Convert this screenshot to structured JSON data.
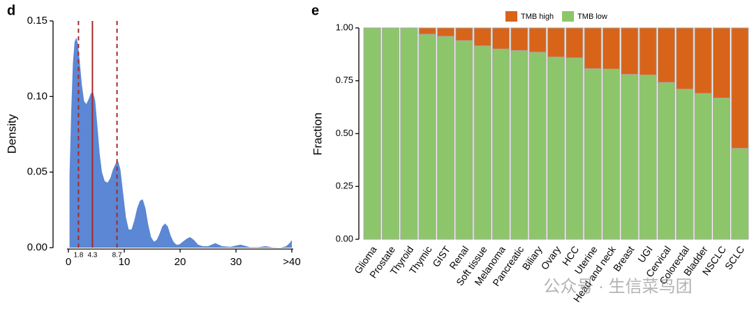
{
  "chart_data": [
    {
      "type": "area",
      "panel": "d",
      "ylabel": "Density",
      "color": "#5b87d4",
      "x": [
        0.2,
        0.5,
        0.8,
        1.1,
        1.4,
        1.7,
        2.0,
        2.4,
        2.8,
        3.2,
        3.6,
        4.0,
        4.4,
        4.8,
        5.2,
        5.6,
        6.0,
        6.5,
        7.0,
        7.5,
        8.0,
        8.5,
        8.9,
        9.3,
        9.8,
        10.3,
        10.8,
        11.3,
        11.8,
        12.3,
        12.8,
        13.3,
        13.8,
        14.3,
        14.8,
        15.3,
        15.8,
        16.3,
        16.8,
        17.3,
        17.8,
        18.3,
        18.8,
        19.3,
        19.8,
        20.5,
        21.2,
        21.8,
        22.5,
        23.2,
        24,
        25,
        26.3,
        27.5,
        29,
        30.8,
        32.5,
        34,
        35.3,
        36.5,
        38,
        39,
        39.6,
        40
      ],
      "values": [
        0.048,
        0.09,
        0.122,
        0.136,
        0.139,
        0.135,
        0.124,
        0.108,
        0.097,
        0.095,
        0.098,
        0.102,
        0.103,
        0.097,
        0.08,
        0.062,
        0.05,
        0.044,
        0.043,
        0.046,
        0.052,
        0.056,
        0.057,
        0.052,
        0.036,
        0.02,
        0.012,
        0.012,
        0.018,
        0.026,
        0.031,
        0.032,
        0.026,
        0.015,
        0.007,
        0.004,
        0.005,
        0.009,
        0.014,
        0.016,
        0.014,
        0.008,
        0.004,
        0.002,
        0.002,
        0.004,
        0.006,
        0.007,
        0.005,
        0.002,
        0.001,
        0.001,
        0.003,
        0.001,
        0.0005,
        0.002,
        0.0003,
        0.0003,
        0.001,
        0.0002,
        0,
        0.001,
        0.003,
        0.005
      ],
      "xlim": [
        0,
        40
      ],
      "xticks": [
        0,
        10,
        20,
        30,
        {
          "value": 40,
          "label": ">40"
        }
      ],
      "ylim": [
        0,
        0.15
      ],
      "yticks": [
        {
          "value": 0,
          "label": "0.00"
        },
        {
          "value": 0.05,
          "label": "0.05"
        },
        {
          "value": 0.1,
          "label": "0.10"
        },
        {
          "value": 0.15,
          "label": "0.15"
        }
      ],
      "reference_lines": [
        {
          "value": 1.8,
          "style": "dashed"
        },
        {
          "value": 4.3,
          "style": "solid"
        },
        {
          "value": 8.7,
          "style": "dashed"
        }
      ],
      "reference_color": "#a52a2a"
    },
    {
      "type": "stacked_bar",
      "panel": "e",
      "ylabel": "Fraction",
      "categories": [
        "Glioma",
        "Prostate",
        "Thyroid",
        "Thymic",
        "GIST",
        "Renal",
        "Soft tissue",
        "Melanoma",
        "Pancreatic",
        "Biliary",
        "Ovary",
        "HCC",
        "Uterine",
        "Head and neck",
        "Breast",
        "UGI",
        "Cervical",
        "Colorectal",
        "Bladder",
        "NSCLC",
        "SCLC"
      ],
      "series": [
        {
          "name": "TMB low",
          "color": "#8dc66a",
          "values": [
            1.0,
            1.0,
            1.0,
            0.97,
            0.96,
            0.94,
            0.915,
            0.9,
            0.893,
            0.885,
            0.862,
            0.858,
            0.807,
            0.805,
            0.78,
            0.777,
            0.742,
            0.71,
            0.69,
            0.668,
            0.43
          ]
        },
        {
          "name": "TMB high",
          "color": "#d8641a",
          "values": [
            0,
            0,
            0,
            0.03,
            0.04,
            0.06,
            0.085,
            0.1,
            0.107,
            0.115,
            0.138,
            0.142,
            0.193,
            0.195,
            0.22,
            0.223,
            0.258,
            0.29,
            0.31,
            0.332,
            0.57
          ]
        }
      ],
      "legend_order": [
        1,
        0
      ],
      "ylim": [
        0,
        1
      ],
      "yticks": [
        {
          "value": 0,
          "label": "0.00"
        },
        {
          "value": 0.25,
          "label": "0.25"
        },
        {
          "value": 0.5,
          "label": "0.50"
        },
        {
          "value": 0.75,
          "label": "0.75"
        },
        {
          "value": 1,
          "label": "1.00"
        }
      ]
    }
  ],
  "watermark": "公众号 · 生信菜鸟团"
}
